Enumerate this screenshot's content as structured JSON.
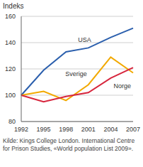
{
  "chart_data": {
    "type": "line",
    "y_label": "Indeks",
    "caption": "Kilde: Kings College London. International Centre for Prison Studies, «World population List 2009».",
    "categories": [
      "1992",
      "1995",
      "1998",
      "2001",
      "2004",
      "2007"
    ],
    "series": [
      {
        "name": "USA",
        "color": "#2b5fad",
        "values": [
          100,
          119,
          133,
          136,
          144,
          151
        ]
      },
      {
        "name": "Sverige",
        "color": "#f2a900",
        "values": [
          100,
          103,
          96,
          108,
          129,
          117
        ]
      },
      {
        "name": "Norge",
        "color": "#d7263d",
        "values": [
          100,
          95,
          99,
          102,
          113,
          121
        ]
      }
    ],
    "ylim": [
      80,
      160
    ],
    "yticks": [
      80,
      100,
      120,
      140,
      160
    ],
    "grid": true
  }
}
